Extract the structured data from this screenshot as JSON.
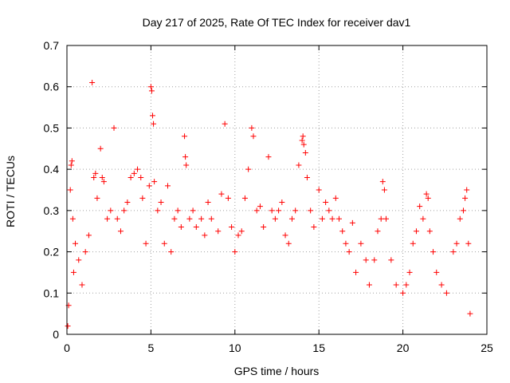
{
  "chart_data": {
    "type": "scatter",
    "title": "Day 217 of 2025, Rate Of TEC Index for receiver dav1",
    "xlabel": "GPS time / hours",
    "ylabel": "ROTI / TECUs",
    "xlim": [
      0,
      25
    ],
    "ylim": [
      0,
      0.7
    ],
    "xticks": [
      0,
      5,
      10,
      15,
      20,
      25
    ],
    "yticks": [
      0,
      0.1,
      0.2,
      0.3,
      0.4,
      0.5,
      0.6,
      0.7
    ],
    "xtick_labels": [
      "0",
      "5",
      "10",
      "15",
      "20",
      "25"
    ],
    "ytick_labels": [
      "0",
      "0.1",
      "0.2",
      "0.3",
      "0.4",
      "0.5",
      "0.6",
      "0.7"
    ],
    "grid": true,
    "legend": "none",
    "marker": "plus",
    "color": "#ff0000",
    "series": [
      {
        "points": [
          [
            0.05,
            0.02
          ],
          [
            0.1,
            0.07
          ],
          [
            0.2,
            0.35
          ],
          [
            0.25,
            0.41
          ],
          [
            0.3,
            0.42
          ],
          [
            0.35,
            0.28
          ],
          [
            0.4,
            0.15
          ],
          [
            0.5,
            0.22
          ],
          [
            0.7,
            0.18
          ],
          [
            0.9,
            0.12
          ],
          [
            1.1,
            0.2
          ],
          [
            1.3,
            0.24
          ],
          [
            1.5,
            0.61
          ],
          [
            1.6,
            0.38
          ],
          [
            1.7,
            0.39
          ],
          [
            1.8,
            0.33
          ],
          [
            2.0,
            0.45
          ],
          [
            2.1,
            0.38
          ],
          [
            2.2,
            0.37
          ],
          [
            2.4,
            0.28
          ],
          [
            2.6,
            0.3
          ],
          [
            2.8,
            0.5
          ],
          [
            3.0,
            0.28
          ],
          [
            3.2,
            0.25
          ],
          [
            3.4,
            0.3
          ],
          [
            3.6,
            0.32
          ],
          [
            3.8,
            0.38
          ],
          [
            4.0,
            0.39
          ],
          [
            4.2,
            0.4
          ],
          [
            4.4,
            0.38
          ],
          [
            4.5,
            0.33
          ],
          [
            4.7,
            0.22
          ],
          [
            4.9,
            0.36
          ],
          [
            5.0,
            0.6
          ],
          [
            5.05,
            0.59
          ],
          [
            5.1,
            0.53
          ],
          [
            5.15,
            0.51
          ],
          [
            5.2,
            0.37
          ],
          [
            5.4,
            0.3
          ],
          [
            5.6,
            0.32
          ],
          [
            5.8,
            0.22
          ],
          [
            6.0,
            0.36
          ],
          [
            6.2,
            0.2
          ],
          [
            6.4,
            0.28
          ],
          [
            6.6,
            0.3
          ],
          [
            6.8,
            0.26
          ],
          [
            7.0,
            0.48
          ],
          [
            7.05,
            0.43
          ],
          [
            7.1,
            0.41
          ],
          [
            7.3,
            0.28
          ],
          [
            7.5,
            0.3
          ],
          [
            7.7,
            0.26
          ],
          [
            8.0,
            0.28
          ],
          [
            8.2,
            0.24
          ],
          [
            8.4,
            0.32
          ],
          [
            8.6,
            0.28
          ],
          [
            9.0,
            0.25
          ],
          [
            9.2,
            0.34
          ],
          [
            9.4,
            0.51
          ],
          [
            9.6,
            0.33
          ],
          [
            9.8,
            0.26
          ],
          [
            10.0,
            0.2
          ],
          [
            10.2,
            0.24
          ],
          [
            10.4,
            0.25
          ],
          [
            10.6,
            0.33
          ],
          [
            10.8,
            0.4
          ],
          [
            11.0,
            0.5
          ],
          [
            11.1,
            0.48
          ],
          [
            11.3,
            0.3
          ],
          [
            11.5,
            0.31
          ],
          [
            11.7,
            0.26
          ],
          [
            12.0,
            0.43
          ],
          [
            12.2,
            0.3
          ],
          [
            12.4,
            0.28
          ],
          [
            12.6,
            0.3
          ],
          [
            12.8,
            0.32
          ],
          [
            13.0,
            0.24
          ],
          [
            13.2,
            0.22
          ],
          [
            13.4,
            0.28
          ],
          [
            13.6,
            0.3
          ],
          [
            13.8,
            0.41
          ],
          [
            14.0,
            0.47
          ],
          [
            14.05,
            0.48
          ],
          [
            14.1,
            0.46
          ],
          [
            14.2,
            0.44
          ],
          [
            14.3,
            0.38
          ],
          [
            14.5,
            0.3
          ],
          [
            14.7,
            0.26
          ],
          [
            15.0,
            0.35
          ],
          [
            15.2,
            0.28
          ],
          [
            15.4,
            0.32
          ],
          [
            15.6,
            0.3
          ],
          [
            15.8,
            0.28
          ],
          [
            16.0,
            0.33
          ],
          [
            16.2,
            0.28
          ],
          [
            16.4,
            0.25
          ],
          [
            16.6,
            0.22
          ],
          [
            16.8,
            0.2
          ],
          [
            17.0,
            0.27
          ],
          [
            17.2,
            0.15
          ],
          [
            17.5,
            0.22
          ],
          [
            17.8,
            0.18
          ],
          [
            18.0,
            0.12
          ],
          [
            18.3,
            0.18
          ],
          [
            18.5,
            0.25
          ],
          [
            18.7,
            0.28
          ],
          [
            18.8,
            0.37
          ],
          [
            18.9,
            0.35
          ],
          [
            19.0,
            0.28
          ],
          [
            19.3,
            0.18
          ],
          [
            19.6,
            0.12
          ],
          [
            20.0,
            0.1
          ],
          [
            20.2,
            0.12
          ],
          [
            20.4,
            0.15
          ],
          [
            20.6,
            0.22
          ],
          [
            20.8,
            0.25
          ],
          [
            21.0,
            0.31
          ],
          [
            21.2,
            0.28
          ],
          [
            21.4,
            0.34
          ],
          [
            21.5,
            0.33
          ],
          [
            21.6,
            0.25
          ],
          [
            21.8,
            0.2
          ],
          [
            22.0,
            0.15
          ],
          [
            22.3,
            0.12
          ],
          [
            22.6,
            0.1
          ],
          [
            23.0,
            0.2
          ],
          [
            23.2,
            0.22
          ],
          [
            23.4,
            0.28
          ],
          [
            23.6,
            0.3
          ],
          [
            23.7,
            0.33
          ],
          [
            23.8,
            0.35
          ],
          [
            23.9,
            0.22
          ],
          [
            24.0,
            0.05
          ]
        ]
      }
    ]
  }
}
